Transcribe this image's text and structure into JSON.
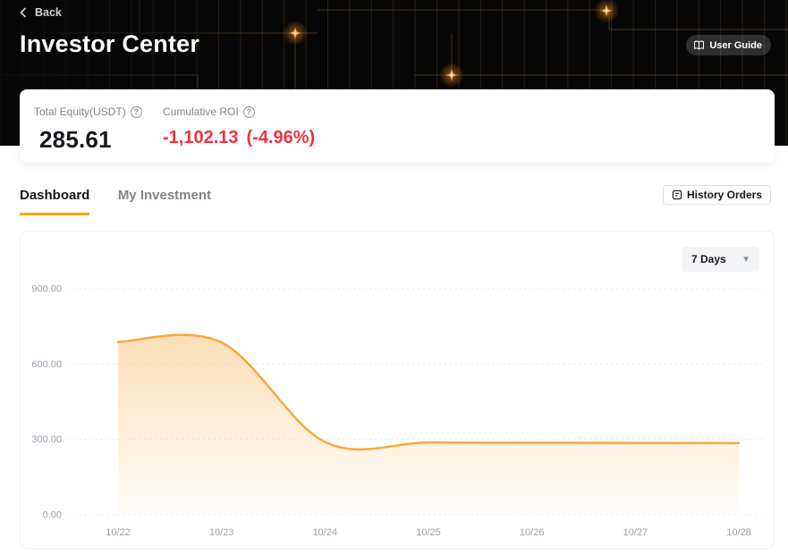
{
  "header": {
    "back_label": "Back",
    "title": "Investor Center",
    "user_guide_label": "User Guide"
  },
  "summary": {
    "total_equity": {
      "label": "Total Equity(USDT)",
      "value": "285.61"
    },
    "roi": {
      "label": "Cumulative ROI",
      "value": "-1,102.13",
      "pct": "(-4.96%)"
    }
  },
  "tabs": [
    {
      "label": "Dashboard",
      "active": true
    },
    {
      "label": "My Investment",
      "active": false
    }
  ],
  "actions": {
    "history_orders_label": "History Orders"
  },
  "chart": {
    "range_label": "7 Days"
  },
  "chart_data": {
    "type": "area",
    "title": "",
    "x": [
      "10/22",
      "10/23",
      "10/24",
      "10/25",
      "10/26",
      "10/27",
      "10/28"
    ],
    "values": [
      688,
      686,
      290,
      288,
      287,
      286,
      285.61
    ],
    "ylim": [
      0,
      900
    ],
    "yticks": [
      0,
      300,
      600,
      900
    ],
    "ytick_labels": [
      "0.00",
      "300.00",
      "600.00",
      "900.00"
    ],
    "grid": "dashed-horizontal",
    "legend": "none",
    "line_color": "#F9A83C",
    "area_color": "#F9A83C",
    "grid_color": "#E9EAEE",
    "label_color": "#9BA0AC"
  },
  "colors": {
    "accent_orange": "#F7A600",
    "negative_red": "#F5303E",
    "header_bg": "#060606",
    "muted_text": "#81858C",
    "primary_text": "#17181D"
  }
}
